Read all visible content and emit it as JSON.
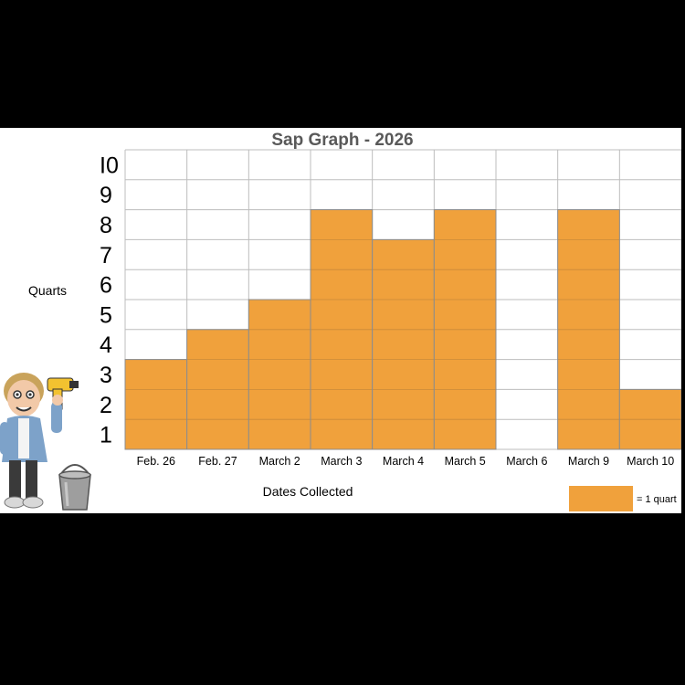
{
  "chart_data": {
    "type": "bar",
    "title": "Sap Graph - 2026",
    "ylabel": "Quarts",
    "xlabel": "Dates Collected",
    "categories": [
      "Feb. 26",
      "Feb. 27",
      "March 2",
      "March 3",
      "March 4",
      "March 5",
      "March 6",
      "March 9",
      "March 10"
    ],
    "values": [
      3,
      4,
      5,
      8,
      7,
      8,
      0,
      8,
      2
    ],
    "ylim": [
      0,
      10
    ],
    "ytick_labels": [
      "1",
      "2",
      "3",
      "4",
      "5",
      "6",
      "7",
      "8",
      "9",
      "I0"
    ],
    "grid": true,
    "bar_color": "#F0A13C",
    "grid_color": "#BDBDBD",
    "legend": {
      "label": "= 1 quart",
      "position": "bottom-right"
    }
  },
  "icons": {
    "person": "cartoon-person-holding-drill-icon",
    "bucket": "metal-bucket-icon"
  }
}
